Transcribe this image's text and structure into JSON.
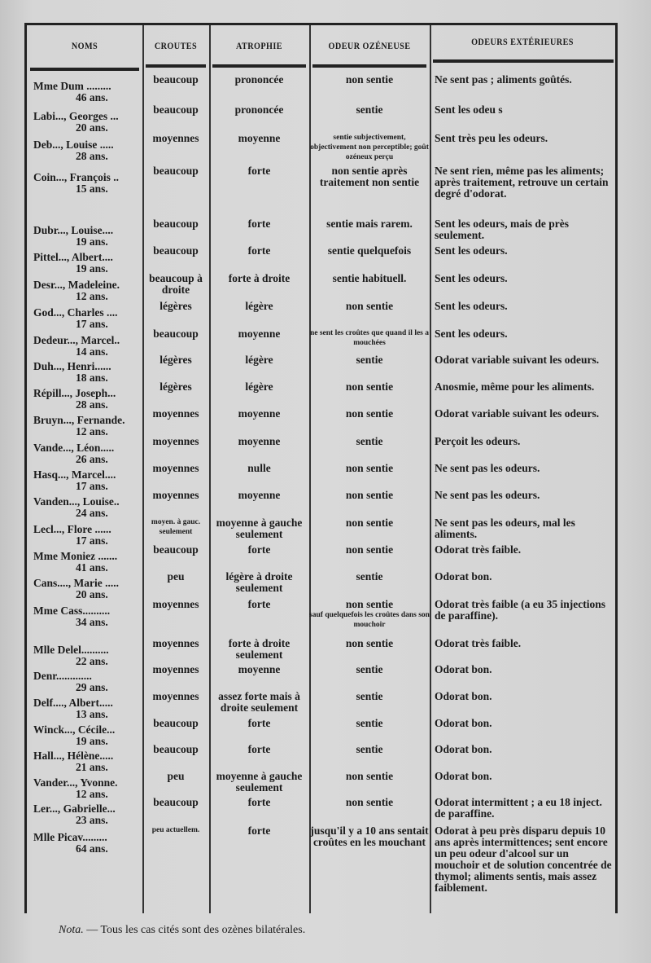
{
  "headers": [
    "NOMS",
    "CROUTES",
    "ATROPHIE",
    "ODEUR OZÉNEUSE",
    "ODEURS EXTÉRIEURES"
  ],
  "rows": [
    {
      "name": "Mme Dum .........",
      "age": "46 ans.",
      "croutes": "beaucoup",
      "atrophie": "prononcée",
      "odeur": "non sentie",
      "exterieures": "Ne sent pas ; aliments goûtés."
    },
    {
      "name": "Labi..., Georges ...",
      "age": "20 ans.",
      "croutes": "beaucoup",
      "atrophie": "prononcée",
      "odeur": "sentie",
      "exterieures": "Sent les odeu s"
    },
    {
      "name": "Deb..., Louise .....",
      "age": "28 ans.",
      "croutes": "moyennes",
      "atrophie": "moyenne",
      "odeur": "sentie subjectivement, objectivement non perceptible; goût ozéneux perçu",
      "odeur_small": true,
      "exterieures": "Sent très peu les odeurs."
    },
    {
      "name": "Coin..., François ..",
      "age": "15 ans.",
      "croutes": "beaucoup",
      "atrophie": "forte",
      "odeur": "non sentie après traitement non sentie",
      "exterieures": "Ne sent rien, même pas les aliments; après traitement, retrouve un certain degré d'odorat."
    },
    {
      "name": "Dubr..., Louise....",
      "age": "19 ans.",
      "croutes": "beaucoup",
      "atrophie": "forte",
      "odeur": "sentie mais rarem.",
      "exterieures": "Sent les odeurs, mais de près seulement."
    },
    {
      "name": "Pittel..., Albert....",
      "age": "19 ans.",
      "croutes": "beaucoup",
      "atrophie": "forte",
      "odeur": "sentie quelquefois",
      "exterieures": "Sent les odeurs."
    },
    {
      "name": "Desr..., Madeleine.",
      "age": "12 ans.",
      "croutes": "beaucoup à droite",
      "atrophie": "forte à droite",
      "odeur": "sentie habituell.",
      "exterieures": "Sent les odeurs."
    },
    {
      "name": "God..., Charles ....",
      "age": "17 ans.",
      "croutes": "légères",
      "atrophie": "légère",
      "odeur": "non sentie",
      "exterieures": "Sent les odeurs."
    },
    {
      "name": "Dedeur..., Marcel..",
      "age": "14 ans.",
      "croutes": "beaucoup",
      "atrophie": "moyenne",
      "odeur": "ne sent les croûtes que quand il les a mouchées",
      "odeur_small": true,
      "exterieures": "Sent les odeurs."
    },
    {
      "name": "Duh..., Henri......",
      "age": "18 ans.",
      "croutes": "légères",
      "atrophie": "légère",
      "odeur": "sentie",
      "exterieures": "Odorat variable suivant les odeurs."
    },
    {
      "name": "Répill..., Joseph...",
      "age": "28 ans.",
      "croutes": "légères",
      "atrophie": "légère",
      "odeur": "non sentie",
      "exterieures": "Anosmie, même pour les aliments."
    },
    {
      "name": "Bruyn..., Fernande.",
      "age": "12 ans.",
      "croutes": "moyennes",
      "atrophie": "moyenne",
      "odeur": "non sentie",
      "exterieures": "Odorat variable suivant les odeurs."
    },
    {
      "name": "Vande..., Léon.....",
      "age": "26 ans.",
      "croutes": "moyennes",
      "atrophie": "moyenne",
      "odeur": "sentie",
      "exterieures": "Perçoit les odeurs."
    },
    {
      "name": "Hasq..., Marcel....",
      "age": "17 ans.",
      "croutes": "moyennes",
      "atrophie": "nulle",
      "odeur": "non sentie",
      "exterieures": "Ne sent pas les odeurs."
    },
    {
      "name": "Vanden..., Louise..",
      "age": "24 ans.",
      "croutes": "moyennes",
      "atrophie": "moyenne",
      "odeur": "non sentie",
      "exterieures": "Ne sent pas les odeurs."
    },
    {
      "name": "Lecl..., Flore ......",
      "age": "17 ans.",
      "croutes": "moyen. à gauc. seulement",
      "croutes_small": true,
      "atrophie": "moyenne à gauche seulement",
      "odeur": "non sentie",
      "exterieures": "Ne sent pas les odeurs, mal les aliments."
    },
    {
      "name": "Mme Moniez .......",
      "age": "41 ans.",
      "croutes": "beaucoup",
      "atrophie": "forte",
      "odeur": "non sentie",
      "exterieures": "Odorat très faible."
    },
    {
      "name": "Cans...., Marie .....",
      "age": "20 ans.",
      "croutes": "peu",
      "atrophie": "légère à droite seulement",
      "odeur": "sentie",
      "exterieures": "Odorat bon."
    },
    {
      "name": "Mme Cass..........",
      "age": "34 ans.",
      "croutes": "moyennes",
      "atrophie": "forte",
      "odeur": "non sentie",
      "odeur_note": "sauf quelquefois les croûtes dans son mouchoir",
      "exterieures": "Odorat très faible (a eu 35 injections de paraffine)."
    },
    {
      "name": "Mlle Delel..........",
      "age": "22 ans.",
      "croutes": "moyennes",
      "atrophie": "forte à droite seulement",
      "odeur": "non sentie",
      "exterieures": "Odorat très faible."
    },
    {
      "name": "Denr.............",
      "age": "29 ans.",
      "croutes": "moyennes",
      "atrophie": "moyenne",
      "odeur": "sentie",
      "exterieures": "Odorat bon."
    },
    {
      "name": "Delf...., Albert.....",
      "age": "13 ans.",
      "croutes": "moyennes",
      "atrophie": "assez forte mais à droite seulement",
      "odeur": "sentie",
      "exterieures": "Odorat bon."
    },
    {
      "name": "Winck..., Cécile...",
      "age": "19 ans.",
      "croutes": "beaucoup",
      "atrophie": "forte",
      "odeur": "sentie",
      "exterieures": "Odorat bon."
    },
    {
      "name": "Hall..., Hélène.....",
      "age": "21 ans.",
      "croutes": "beaucoup",
      "atrophie": "forte",
      "odeur": "sentie",
      "exterieures": "Odorat bon."
    },
    {
      "name": "Vander..., Yvonne.",
      "age": "12 ans.",
      "croutes": "peu",
      "atrophie": "moyenne à gauche seulement",
      "odeur": "non sentie",
      "exterieures": "Odorat bon."
    },
    {
      "name": "Ler..., Gabrielle...",
      "age": "23 ans.",
      "croutes": "beaucoup",
      "atrophie": "forte",
      "odeur": "non sentie",
      "exterieures": "Odorat intermittent ; a eu 18 inject. de paraffine."
    },
    {
      "name": "Mlle Picav.........",
      "age": "64 ans.",
      "croutes": "peu actuellem.",
      "croutes_small": true,
      "atrophie": "forte",
      "odeur": "jusqu'il y a 10 ans sentait croûtes en les mouchant",
      "exterieures": "Odorat à peu près disparu depuis 10 ans après intermittences; sent encore un peu odeur d'alcool sur un mouchoir et de solution concentrée de thymol; aliments sentis, mais assez faiblement."
    }
  ],
  "nota": {
    "label": "Nota.",
    "text": " — Tous les cas cités sont des ozènes bilatérales."
  }
}
